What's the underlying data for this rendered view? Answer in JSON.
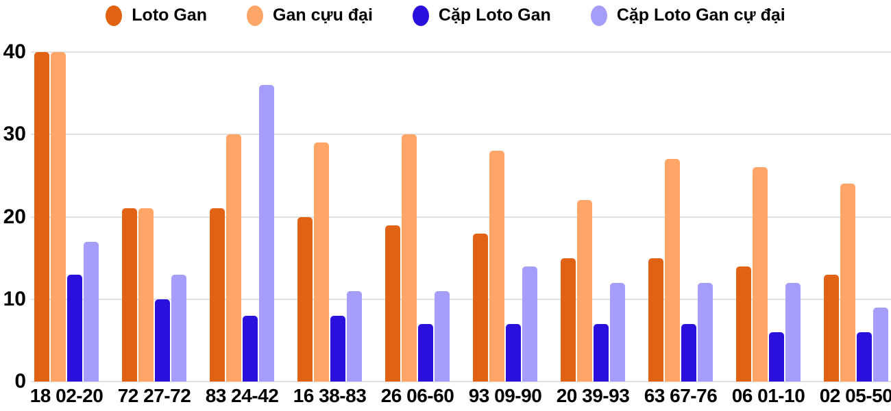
{
  "chart_data": {
    "type": "bar",
    "title": "",
    "xlabel": "",
    "ylabel": "",
    "categories": [
      "18 02-20",
      "72 27-72",
      "83 24-42",
      "16 38-83",
      "26 06-60",
      "93 09-90",
      "20 39-93",
      "63 67-76",
      "06 01-10",
      "02 05-50"
    ],
    "series": [
      {
        "name": "Loto Gan",
        "color": "#e06212",
        "values": [
          40,
          21,
          21,
          20,
          19,
          18,
          15,
          15,
          14,
          13
        ]
      },
      {
        "name": "Gan cựu đại",
        "color": "#ffa568",
        "values": [
          40,
          21,
          30,
          29,
          30,
          28,
          22,
          27,
          26,
          24
        ]
      },
      {
        "name": "Cặp Loto Gan",
        "color": "#2a10dc",
        "values": [
          13,
          10,
          8,
          8,
          7,
          7,
          7,
          7,
          6,
          6
        ]
      },
      {
        "name": "Cặp Loto Gan cự đại",
        "color": "#a49dfa",
        "values": [
          17,
          13,
          36,
          11,
          11,
          14,
          12,
          12,
          12,
          9
        ]
      }
    ],
    "ylim": [
      0,
      40
    ],
    "yticks": [
      0,
      10,
      20,
      30,
      40
    ],
    "grid": true,
    "legend_position": "top"
  },
  "colors": {
    "grid": "#e2e2e2",
    "axis_text": "#000000",
    "background": "#ffffff"
  }
}
